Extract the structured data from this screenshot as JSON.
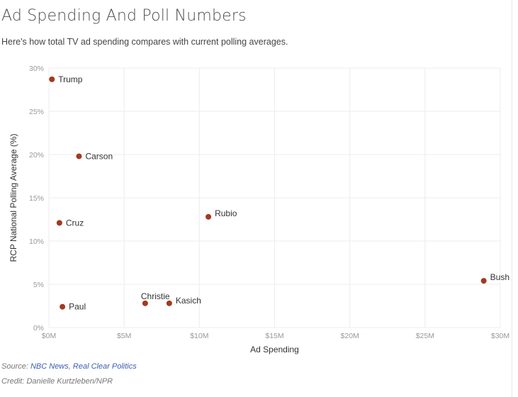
{
  "header": {
    "title": "Ad Spending And Poll Numbers",
    "subtitle": "Here's how total TV ad spending compares with current polling averages."
  },
  "chart_data": {
    "type": "scatter",
    "xlabel": "Ad Spending",
    "ylabel": "RCP National Polling Average (%)",
    "xlim": [
      0,
      30
    ],
    "ylim": [
      0,
      30
    ],
    "x_unit": "$M",
    "y_unit": "%",
    "x_ticks": [
      {
        "value": 0,
        "label": "$0M"
      },
      {
        "value": 5,
        "label": "$5M"
      },
      {
        "value": 10,
        "label": "$10M"
      },
      {
        "value": 15,
        "label": "$15M"
      },
      {
        "value": 20,
        "label": "$20M"
      },
      {
        "value": 25,
        "label": "$25M"
      },
      {
        "value": 30,
        "label": "$30M"
      }
    ],
    "y_ticks": [
      {
        "value": 0,
        "label": "0%"
      },
      {
        "value": 5,
        "label": "5%"
      },
      {
        "value": 10,
        "label": "10%"
      },
      {
        "value": 15,
        "label": "15%"
      },
      {
        "value": 20,
        "label": "20%"
      },
      {
        "value": 25,
        "label": "25%"
      },
      {
        "value": 30,
        "label": "30%"
      }
    ],
    "grid": true,
    "point_color": "#a23a1f",
    "points": [
      {
        "name": "Trump",
        "x": 0.2,
        "y": 28.7
      },
      {
        "name": "Carson",
        "x": 2.0,
        "y": 19.8
      },
      {
        "name": "Cruz",
        "x": 0.7,
        "y": 12.1
      },
      {
        "name": "Rubio",
        "x": 10.6,
        "y": 12.8
      },
      {
        "name": "Bush",
        "x": 28.9,
        "y": 5.4
      },
      {
        "name": "Christie",
        "x": 6.4,
        "y": 2.8
      },
      {
        "name": "Kasich",
        "x": 8.0,
        "y": 2.8
      },
      {
        "name": "Paul",
        "x": 0.9,
        "y": 2.4
      }
    ]
  },
  "footer": {
    "source_prefix": "Source: ",
    "sources": [
      "NBC News",
      "Real Clear Politics"
    ],
    "source_separator": ", ",
    "credit": "Credit: Danielle Kurtzleben/NPR"
  }
}
